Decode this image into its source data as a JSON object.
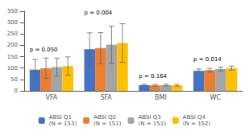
{
  "chart_data": {
    "type": "bar",
    "categories": [
      "VFA",
      "SFA",
      "BMI",
      "WC"
    ],
    "series": [
      {
        "name": "ABSI Q1\n(N = 153)",
        "color": "#4472C4",
        "values": [
          93,
          183,
          25,
          88
        ],
        "errors": [
          45,
          72,
          4,
          8
        ]
      },
      {
        "name": "ABSI Q2\n(N = 151)",
        "color": "#ED7D31",
        "values": [
          99,
          188,
          24,
          91
        ],
        "errors": [
          45,
          68,
          4,
          8
        ]
      },
      {
        "name": "ABSI Q3\n(N = 151)",
        "color": "#A5A5A5",
        "values": [
          104,
          203,
          25,
          96
        ],
        "errors": [
          40,
          82,
          4,
          9
        ]
      },
      {
        "name": "ABSI Q4\n(N = 152)",
        "color": "#FFC000",
        "values": [
          109,
          210,
          24,
          100
        ],
        "errors": [
          40,
          85,
          4,
          9
        ]
      }
    ],
    "annotations": [
      {
        "text": "p = 0.050",
        "category": "VFA",
        "y": 168
      },
      {
        "text": "p = 0.004",
        "category": "SFA",
        "y": 330
      },
      {
        "text": "p = 0.164",
        "category": "BMI",
        "y": 52
      },
      {
        "text": "p = 0.014",
        "category": "WC",
        "y": 127
      }
    ],
    "ylim": [
      0,
      350
    ],
    "yticks": [
      0,
      50,
      100,
      150,
      200,
      250,
      300,
      350
    ],
    "grid": false,
    "legend": "bottom"
  }
}
